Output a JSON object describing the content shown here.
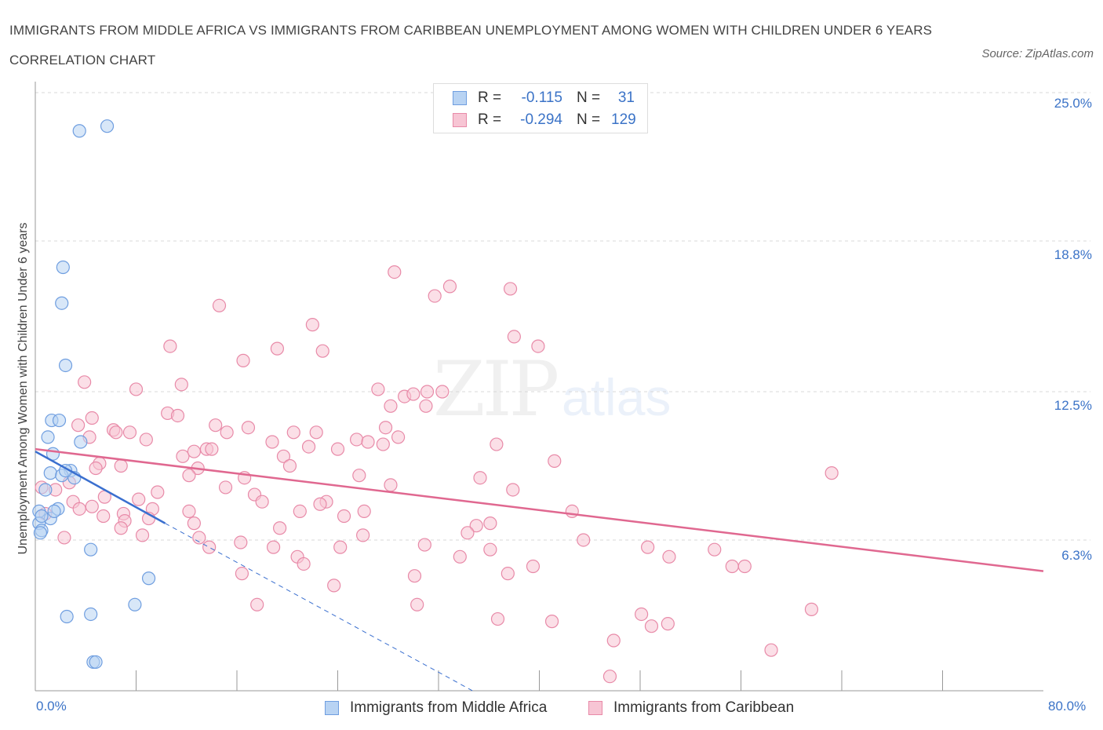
{
  "title": "IMMIGRANTS FROM MIDDLE AFRICA VS IMMIGRANTS FROM CARIBBEAN UNEMPLOYMENT AMONG WOMEN WITH CHILDREN UNDER 6 YEARS CORRELATION CHART",
  "source": "Source: ZipAtlas.com",
  "watermark": {
    "zip": "ZIP",
    "atlas": "atlas"
  },
  "legend": {
    "rows": [
      {
        "r_label": "R =",
        "r_value": "-0.115",
        "n_label": "N =",
        "n_value": "31"
      },
      {
        "r_label": "R =",
        "r_value": "-0.294",
        "n_label": "N =",
        "n_value": "129"
      }
    ]
  },
  "bottom_legend": [
    "Immigrants from Middle Africa",
    "Immigrants from Caribbean"
  ],
  "colors": {
    "blue_fill": "#b8d3f3",
    "blue_stroke": "#6f9ee0",
    "blue_line": "#3a6fcf",
    "pink_fill": "#f7c5d4",
    "pink_stroke": "#e88aa8",
    "pink_line": "#e06890",
    "tick_text": "#3b73c7",
    "grid": "#d9d9d9"
  },
  "chart_data": {
    "type": "scatter",
    "title": "IMMIGRANTS FROM MIDDLE AFRICA VS IMMIGRANTS FROM CARIBBEAN UNEMPLOYMENT AMONG WOMEN WITH CHILDREN UNDER 6 YEARS CORRELATION CHART",
    "xlabel": "",
    "ylabel": "Unemployment Among Women with Children Under 6 years",
    "xlim": [
      0,
      80
    ],
    "ylim": [
      0,
      25
    ],
    "x_tick_labels": [
      "0.0%",
      "80.0%"
    ],
    "y_tick_values": [
      6.3,
      12.5,
      18.8,
      25.0
    ],
    "y_tick_labels": [
      "6.3%",
      "12.5%",
      "18.8%",
      "25.0%"
    ],
    "grid": "horizontal dashed",
    "legend_position": "top-center",
    "series": [
      {
        "name": "Immigrants from Middle Africa",
        "r": -0.115,
        "n": 31,
        "trend": {
          "x": [
            0,
            10.3
          ],
          "y": [
            10.0,
            7.0
          ]
        },
        "trend_extension": {
          "x": [
            10.3,
            34.7
          ],
          "y": [
            7.0,
            0
          ]
        },
        "points": [
          [
            3.5,
            23.4
          ],
          [
            5.7,
            23.6
          ],
          [
            2.2,
            17.7
          ],
          [
            2.1,
            16.2
          ],
          [
            2.4,
            13.6
          ],
          [
            1.3,
            11.3
          ],
          [
            1.9,
            11.3
          ],
          [
            1.0,
            10.6
          ],
          [
            3.6,
            10.4
          ],
          [
            1.4,
            9.9
          ],
          [
            1.2,
            9.1
          ],
          [
            2.8,
            9.2
          ],
          [
            2.1,
            9.0
          ],
          [
            3.1,
            8.9
          ],
          [
            0.8,
            8.4
          ],
          [
            0.3,
            7.5
          ],
          [
            1.2,
            7.2
          ],
          [
            1.8,
            7.6
          ],
          [
            0.3,
            7.0
          ],
          [
            0.5,
            6.7
          ],
          [
            0.4,
            6.6
          ],
          [
            4.4,
            5.9
          ],
          [
            9.0,
            4.7
          ],
          [
            7.9,
            3.6
          ],
          [
            2.5,
            3.1
          ],
          [
            4.4,
            3.2
          ],
          [
            4.6,
            1.2
          ],
          [
            4.8,
            1.2
          ],
          [
            0.5,
            7.3
          ],
          [
            1.5,
            7.5
          ],
          [
            2.4,
            9.2
          ]
        ]
      },
      {
        "name": "Immigrants from Caribbean",
        "r": -0.294,
        "n": 129,
        "trend": {
          "x": [
            0,
            80
          ],
          "y": [
            10.1,
            5.0
          ]
        },
        "points": [
          [
            28.5,
            17.5
          ],
          [
            31.7,
            16.5
          ],
          [
            32.9,
            16.9
          ],
          [
            37.7,
            16.8
          ],
          [
            14.6,
            16.1
          ],
          [
            22.0,
            15.3
          ],
          [
            10.7,
            14.4
          ],
          [
            19.2,
            14.3
          ],
          [
            22.8,
            14.2
          ],
          [
            39.9,
            14.4
          ],
          [
            16.5,
            13.8
          ],
          [
            3.9,
            12.9
          ],
          [
            11.6,
            12.8
          ],
          [
            8.0,
            12.6
          ],
          [
            27.2,
            12.6
          ],
          [
            29.3,
            12.3
          ],
          [
            31.1,
            12.5
          ],
          [
            32.3,
            12.5
          ],
          [
            28.2,
            11.9
          ],
          [
            31.0,
            11.9
          ],
          [
            10.5,
            11.6
          ],
          [
            11.3,
            11.5
          ],
          [
            3.4,
            11.1
          ],
          [
            14.3,
            11.1
          ],
          [
            16.9,
            11.0
          ],
          [
            6.2,
            10.9
          ],
          [
            6.4,
            10.8
          ],
          [
            15.2,
            10.8
          ],
          [
            20.5,
            10.8
          ],
          [
            22.3,
            10.8
          ],
          [
            27.8,
            11.0
          ],
          [
            4.3,
            10.6
          ],
          [
            8.8,
            10.5
          ],
          [
            25.5,
            10.5
          ],
          [
            28.8,
            10.6
          ],
          [
            18.8,
            10.4
          ],
          [
            26.4,
            10.4
          ],
          [
            27.6,
            10.3
          ],
          [
            13.6,
            10.1
          ],
          [
            14.0,
            10.1
          ],
          [
            21.7,
            10.2
          ],
          [
            36.6,
            10.3
          ],
          [
            11.7,
            9.8
          ],
          [
            19.7,
            9.8
          ],
          [
            5.1,
            9.5
          ],
          [
            6.8,
            9.4
          ],
          [
            4.8,
            9.3
          ],
          [
            12.9,
            9.3
          ],
          [
            20.2,
            9.4
          ],
          [
            41.2,
            9.6
          ],
          [
            63.2,
            9.1
          ],
          [
            12.2,
            9.0
          ],
          [
            25.7,
            9.0
          ],
          [
            35.3,
            8.9
          ],
          [
            2.7,
            8.7
          ],
          [
            28.2,
            8.6
          ],
          [
            15.1,
            8.5
          ],
          [
            37.9,
            8.4
          ],
          [
            0.5,
            8.5
          ],
          [
            1.6,
            8.4
          ],
          [
            9.7,
            8.3
          ],
          [
            17.4,
            8.2
          ],
          [
            5.5,
            8.1
          ],
          [
            3.0,
            7.9
          ],
          [
            8.2,
            8.0
          ],
          [
            18.0,
            7.9
          ],
          [
            23.1,
            7.9
          ],
          [
            22.6,
            7.8
          ],
          [
            3.5,
            7.6
          ],
          [
            4.5,
            7.7
          ],
          [
            9.3,
            7.6
          ],
          [
            12.2,
            7.5
          ],
          [
            21.0,
            7.5
          ],
          [
            26.1,
            7.5
          ],
          [
            42.6,
            7.5
          ],
          [
            0.8,
            7.4
          ],
          [
            5.4,
            7.3
          ],
          [
            7.0,
            7.4
          ],
          [
            9.0,
            7.2
          ],
          [
            24.5,
            7.3
          ],
          [
            7.1,
            7.1
          ],
          [
            12.6,
            7.0
          ],
          [
            36.1,
            7.0
          ],
          [
            35.0,
            6.9
          ],
          [
            19.4,
            6.8
          ],
          [
            6.8,
            6.8
          ],
          [
            34.3,
            6.6
          ],
          [
            26.0,
            6.5
          ],
          [
            2.3,
            6.4
          ],
          [
            8.5,
            6.5
          ],
          [
            13.0,
            6.4
          ],
          [
            16.3,
            6.2
          ],
          [
            18.9,
            6.0
          ],
          [
            24.2,
            6.0
          ],
          [
            30.9,
            6.1
          ],
          [
            13.8,
            6.0
          ],
          [
            36.1,
            5.9
          ],
          [
            43.5,
            6.3
          ],
          [
            48.6,
            6.0
          ],
          [
            53.9,
            5.9
          ],
          [
            20.8,
            5.6
          ],
          [
            33.7,
            5.6
          ],
          [
            50.3,
            5.6
          ],
          [
            21.3,
            5.3
          ],
          [
            39.5,
            5.2
          ],
          [
            55.3,
            5.2
          ],
          [
            56.3,
            5.2
          ],
          [
            16.4,
            4.9
          ],
          [
            30.1,
            4.8
          ],
          [
            37.5,
            4.9
          ],
          [
            23.7,
            4.4
          ],
          [
            17.6,
            3.6
          ],
          [
            30.3,
            3.6
          ],
          [
            61.6,
            3.4
          ],
          [
            48.1,
            3.2
          ],
          [
            36.7,
            3.0
          ],
          [
            41.0,
            2.9
          ],
          [
            48.9,
            2.7
          ],
          [
            50.2,
            2.8
          ],
          [
            45.9,
            2.1
          ],
          [
            58.4,
            1.7
          ],
          [
            45.6,
            0.6
          ],
          [
            24.0,
            10.1
          ],
          [
            12.6,
            10.0
          ],
          [
            7.5,
            10.8
          ],
          [
            16.6,
            8.9
          ],
          [
            30.0,
            12.4
          ],
          [
            38.0,
            14.8
          ],
          [
            4.5,
            11.4
          ]
        ]
      }
    ]
  }
}
